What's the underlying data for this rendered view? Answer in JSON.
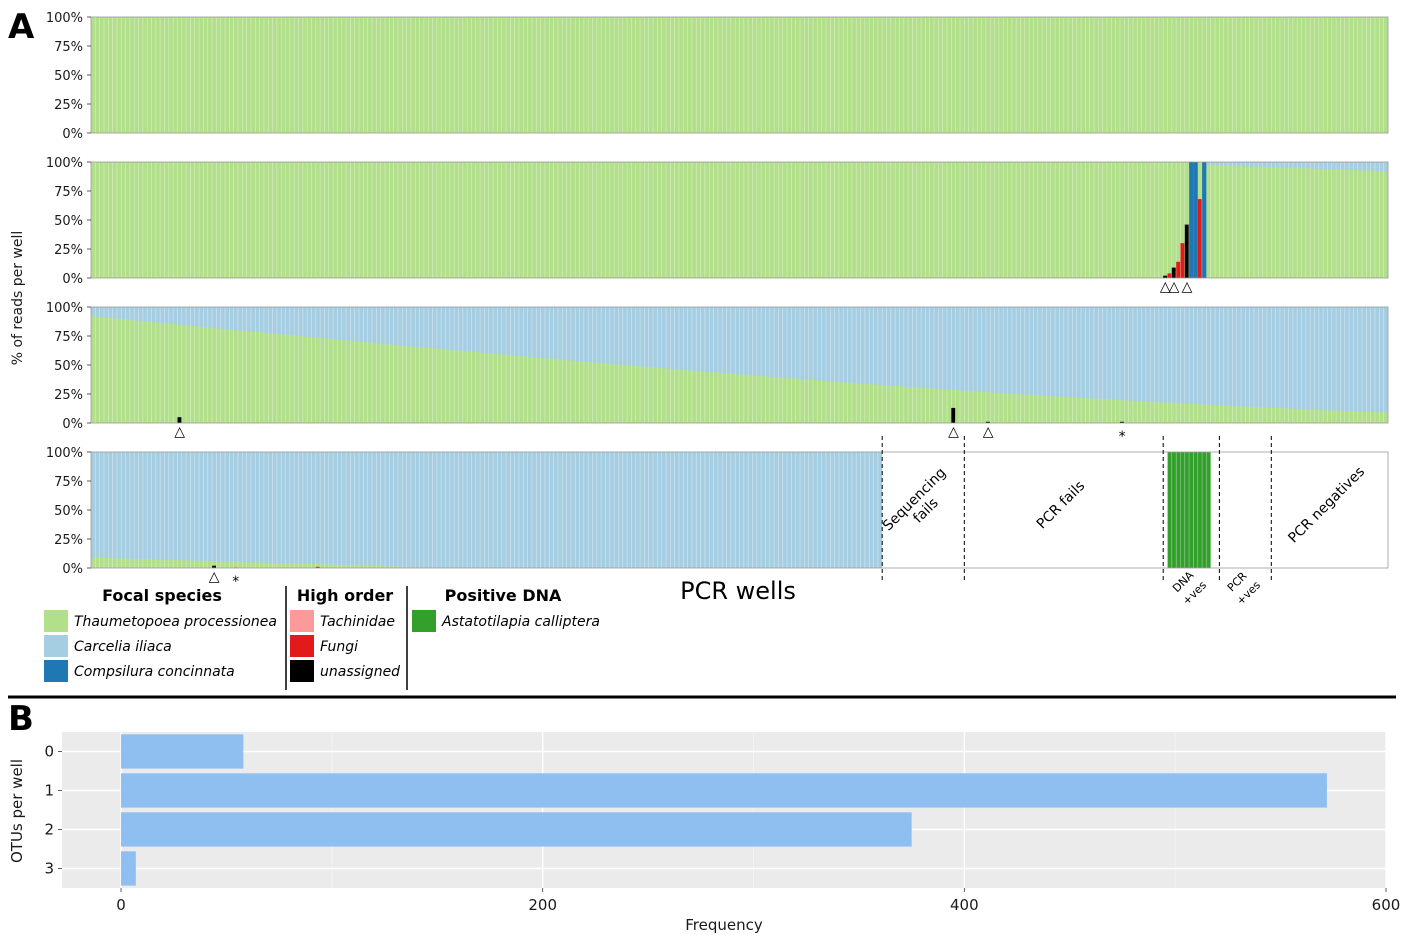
{
  "panels": {
    "a_letter": "A",
    "b_letter": "B"
  },
  "colors": {
    "thaumetopoea": "#b2df8a",
    "carcelia": "#a6cee3",
    "compsilura": "#1f78b4",
    "tachinidae": "#fb9a99",
    "fungi": "#e31a1c",
    "unassigned": "#000000",
    "astatotilapia": "#33a02c",
    "hist_bar": "#8fbff0",
    "hist_bg": "#ebebeb"
  },
  "chart_data": [
    {
      "type": "bar",
      "stacked": true,
      "y_tick_labels": [
        "100%",
        "75%",
        "50%",
        "25%",
        "0%"
      ],
      "ylabel": "% of reads per well",
      "xlabel": "PCR wells",
      "ylim": [
        0,
        100
      ],
      "rows": [
        {
          "id": "row1",
          "wells": 300,
          "description_series": [
            "Thaumetopoea processionea"
          ],
          "thaumetopoea_pct": [
            100,
            100
          ],
          "carcelia_pct": [
            0,
            0
          ]
        },
        {
          "id": "row2",
          "wells": 300,
          "thaumetopoea_pct_start": 100,
          "thaumetopoea_pct_end": 92,
          "high_order_bars": [
            {
              "well": 248,
              "series": "unassigned",
              "pct": 2
            },
            {
              "well": 249,
              "series": "fungi",
              "pct": 4
            },
            {
              "well": 250,
              "series": "unassigned",
              "pct": 9
            },
            {
              "well": 251,
              "series": "fungi",
              "pct": 14
            },
            {
              "well": 252,
              "series": "fungi",
              "pct": 30
            },
            {
              "well": 253,
              "series": "unassigned",
              "pct": 46
            },
            {
              "well": 254,
              "series": "compsilura",
              "pct": 100
            },
            {
              "well": 255,
              "series": "compsilura",
              "pct": 100
            },
            {
              "well": 256,
              "series": "fungi",
              "pct": 68
            },
            {
              "well": 257,
              "series": "compsilura",
              "pct": 100
            }
          ],
          "markers": [
            {
              "well": 248,
              "symbol": "△"
            },
            {
              "well": 250,
              "symbol": "△"
            },
            {
              "well": 253,
              "symbol": "△"
            }
          ]
        },
        {
          "id": "row3",
          "wells": 300,
          "thaumetopoea_pct_start": 92,
          "thaumetopoea_pct_end": 9,
          "high_order_bars": [
            {
              "well": 20,
              "series": "unassigned",
              "pct": 5
            },
            {
              "well": 199,
              "series": "unassigned",
              "pct": 13
            },
            {
              "well": 207,
              "series": "unassigned",
              "pct": 1
            },
            {
              "well": 238,
              "series": "unassigned",
              "pct": 1
            }
          ],
          "markers": [
            {
              "well": 20,
              "symbol": "△"
            },
            {
              "well": 199,
              "symbol": "△"
            },
            {
              "well": 207,
              "symbol": "△"
            },
            {
              "well": 238,
              "symbol": "*"
            }
          ]
        },
        {
          "id": "row4",
          "wells": 300,
          "sample_wells": 183,
          "thaumetopoea_pct_start": 9,
          "thaumetopoea_pct_end": 0,
          "high_order_bars": [
            {
              "well": 28,
              "series": "unassigned",
              "pct": 2
            },
            {
              "well": 33,
              "series": "tachinidae",
              "pct": 1
            },
            {
              "well": 52,
              "series": "fungi",
              "pct": 1
            }
          ],
          "markers": [
            {
              "well": 28,
              "symbol": "△"
            },
            {
              "well": 33,
              "symbol": "*"
            }
          ],
          "positive_dna_wells": [
            249,
            258
          ],
          "regions": [
            {
              "label": "Sequencing\nfails",
              "from_well": 183,
              "to_well": 202
            },
            {
              "label": "PCR fails",
              "from_well": 202,
              "to_well": 248
            },
            {
              "label": "DNA\n+ves",
              "from_well": 248,
              "to_well": 261
            },
            {
              "label": "PCR\n+ves",
              "from_well": 261,
              "to_well": 273
            },
            {
              "label": "PCR negatives",
              "from_well": 273,
              "to_well": 300
            }
          ]
        }
      ],
      "legend": {
        "groups": [
          {
            "title": "Focal species",
            "items": [
              {
                "name": "Thaumetopoea processionea",
                "color_key": "thaumetopoea"
              },
              {
                "name": "Carcelia iliaca",
                "color_key": "carcelia"
              },
              {
                "name": "Compsilura concinnata",
                "color_key": "compsilura"
              }
            ]
          },
          {
            "title": "High order",
            "items": [
              {
                "name": "Tachinidae",
                "color_key": "tachinidae"
              },
              {
                "name": "Fungi",
                "color_key": "fungi"
              },
              {
                "name": "unassigned",
                "color_key": "unassigned"
              }
            ]
          },
          {
            "title": "Positive DNA",
            "items": [
              {
                "name": "Astatotilapia calliptera",
                "color_key": "astatotilapia"
              }
            ]
          }
        ]
      }
    },
    {
      "type": "bar",
      "orientation": "horizontal",
      "categories": [
        "0",
        "1",
        "2",
        "3"
      ],
      "values": [
        58,
        572,
        375,
        7
      ],
      "xlabel": "Frequency",
      "ylabel": "OTUs per well",
      "x_ticks": [
        "0",
        "200",
        "400",
        "600"
      ],
      "xlim": [
        -28,
        600
      ]
    }
  ]
}
